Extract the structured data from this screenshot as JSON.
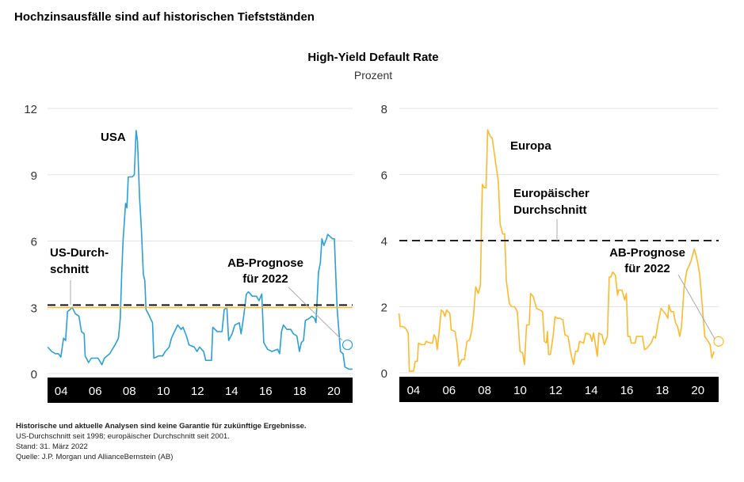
{
  "title": "Hochzinsausfälle sind auf historischen Tiefstständen",
  "subtitle": "High-Yield Default Rate",
  "unit": "Prozent",
  "footnotes": {
    "disclaimer": "Historische und aktuelle Analysen sind keine Garantie für zukünftige Ergebnisse.",
    "note": "US-Durchschnitt seit 1998; europäischer Durchschnitt seit 2001.",
    "date": "Stand: 31. März 2022",
    "source": "Quelle: J.P. Morgan und AllianceBernstein (AB)"
  },
  "chart_data": [
    {
      "type": "line",
      "title": "USA",
      "series_color": "#2a9fd8",
      "ylabel": "Prozent",
      "xlim": [
        2003.2,
        2021.1
      ],
      "ylim": [
        0,
        12
      ],
      "yticks": [
        "0",
        "3",
        "6",
        "9",
        "12"
      ],
      "ytick_values": [
        0,
        3,
        6,
        9,
        12
      ],
      "xticks": [
        "04",
        "06",
        "08",
        "10",
        "12",
        "14",
        "16",
        "18",
        "20"
      ],
      "xtick_values": [
        2004,
        2006,
        2008,
        2010,
        2012,
        2014,
        2016,
        2018,
        2020
      ],
      "average": {
        "value": 3.1,
        "label1": "US-Durch-",
        "label2": "schnitt"
      },
      "forecast": {
        "x": 2020.8,
        "value": 1.3,
        "label1": "AB-Prognose",
        "label2": "für 2022"
      },
      "points": [
        [
          2003.21,
          1.2
        ],
        [
          2003.44,
          1.0
        ],
        [
          2003.67,
          0.9
        ],
        [
          2003.83,
          0.9
        ],
        [
          2003.98,
          0.75
        ],
        [
          2004.14,
          1.6
        ],
        [
          2004.26,
          1.5
        ],
        [
          2004.37,
          2.8
        ],
        [
          2004.53,
          2.9
        ],
        [
          2004.64,
          3.0
        ],
        [
          2004.84,
          2.7
        ],
        [
          2005.04,
          2.6
        ],
        [
          2005.19,
          1.9
        ],
        [
          2005.35,
          1.8
        ],
        [
          2005.41,
          0.8
        ],
        [
          2005.61,
          0.5
        ],
        [
          2005.77,
          0.7
        ],
        [
          2006.16,
          0.7
        ],
        [
          2006.39,
          0.4
        ],
        [
          2006.54,
          0.7
        ],
        [
          2006.85,
          0.9
        ],
        [
          2007.16,
          1.3
        ],
        [
          2007.36,
          1.6
        ],
        [
          2007.47,
          2.5
        ],
        [
          2007.55,
          4.5
        ],
        [
          2007.63,
          6.0
        ],
        [
          2007.78,
          7.7
        ],
        [
          2007.86,
          7.5
        ],
        [
          2007.94,
          8.9
        ],
        [
          2008.17,
          8.9
        ],
        [
          2008.29,
          9.0
        ],
        [
          2008.4,
          11.0
        ],
        [
          2008.48,
          10.5
        ],
        [
          2008.6,
          8.0
        ],
        [
          2008.71,
          6.5
        ],
        [
          2008.82,
          4.5
        ],
        [
          2008.91,
          4.2
        ],
        [
          2008.98,
          2.9
        ],
        [
          2009.18,
          2.6
        ],
        [
          2009.36,
          2.3
        ],
        [
          2009.44,
          0.7
        ],
        [
          2009.72,
          0.8
        ],
        [
          2009.95,
          0.8
        ],
        [
          2010.11,
          1.0
        ],
        [
          2010.34,
          1.2
        ],
        [
          2010.47,
          1.6
        ],
        [
          2010.65,
          1.9
        ],
        [
          2010.84,
          2.2
        ],
        [
          2011.04,
          2.0
        ],
        [
          2011.15,
          2.1
        ],
        [
          2011.35,
          1.7
        ],
        [
          2011.5,
          1.3
        ],
        [
          2011.81,
          1.2
        ],
        [
          2011.97,
          1.0
        ],
        [
          2012.12,
          1.2
        ],
        [
          2012.36,
          1.0
        ],
        [
          2012.48,
          0.6
        ],
        [
          2012.82,
          0.6
        ],
        [
          2012.9,
          2.1
        ],
        [
          2013.16,
          1.9
        ],
        [
          2013.44,
          1.9
        ],
        [
          2013.57,
          2.9
        ],
        [
          2013.72,
          3.0
        ],
        [
          2013.83,
          1.5
        ],
        [
          2014.03,
          1.8
        ],
        [
          2014.19,
          2.2
        ],
        [
          2014.45,
          2.3
        ],
        [
          2014.56,
          1.8
        ],
        [
          2014.71,
          2.6
        ],
        [
          2014.87,
          3.6
        ],
        [
          2014.99,
          3.7
        ],
        [
          2015.22,
          3.5
        ],
        [
          2015.46,
          3.5
        ],
        [
          2015.61,
          3.3
        ],
        [
          2015.77,
          3.6
        ],
        [
          2015.89,
          1.4
        ],
        [
          2016.11,
          1.1
        ],
        [
          2016.36,
          1.0
        ],
        [
          2016.7,
          1.1
        ],
        [
          2016.82,
          0.9
        ],
        [
          2016.93,
          1.9
        ],
        [
          2017.04,
          2.2
        ],
        [
          2017.24,
          2.0
        ],
        [
          2017.47,
          2.0
        ],
        [
          2017.63,
          1.8
        ],
        [
          2017.83,
          1.7
        ],
        [
          2017.98,
          1.0
        ],
        [
          2018.09,
          1.4
        ],
        [
          2018.22,
          1.5
        ],
        [
          2018.33,
          2.4
        ],
        [
          2018.56,
          2.5
        ],
        [
          2018.71,
          2.6
        ],
        [
          2018.87,
          2.5
        ],
        [
          2018.95,
          2.3
        ],
        [
          2019.1,
          4.6
        ],
        [
          2019.21,
          5.0
        ],
        [
          2019.3,
          6.1
        ],
        [
          2019.41,
          5.8
        ],
        [
          2019.57,
          6.1
        ],
        [
          2019.64,
          6.3
        ],
        [
          2019.92,
          6.1
        ],
        [
          2020.03,
          6.1
        ],
        [
          2020.19,
          3.0
        ],
        [
          2020.39,
          1.0
        ],
        [
          2020.54,
          0.9
        ],
        [
          2020.65,
          0.3
        ],
        [
          2020.88,
          0.2
        ],
        [
          2021.09,
          0.2
        ]
      ]
    },
    {
      "type": "line",
      "title": "Europa",
      "series_color": "#fdb92c",
      "ylabel": "Prozent",
      "xlim": [
        2003.2,
        2021.17
      ],
      "ylim": [
        0,
        8
      ],
      "yticks": [
        "0",
        "2",
        "4",
        "6",
        "8"
      ],
      "ytick_values": [
        0,
        2,
        4,
        6,
        8
      ],
      "xticks": [
        "04",
        "06",
        "08",
        "10",
        "12",
        "14",
        "16",
        "18",
        "20"
      ],
      "xtick_values": [
        2004,
        2006,
        2008,
        2010,
        2012,
        2014,
        2016,
        2018,
        2020
      ],
      "average": {
        "value": 4.0,
        "label1": "Europäischer",
        "label2": "Durchschnitt"
      },
      "forecast": {
        "x": 2021.17,
        "value": 0.95,
        "label1": "AB-Prognose",
        "label2": "für 2022"
      },
      "points": [
        [
          2003.18,
          1.8
        ],
        [
          2003.25,
          1.4
        ],
        [
          2003.4,
          1.4
        ],
        [
          2003.55,
          1.35
        ],
        [
          2003.7,
          1.2
        ],
        [
          2003.76,
          0.05
        ],
        [
          2004.0,
          0.05
        ],
        [
          2004.1,
          0.35
        ],
        [
          2004.21,
          0.35
        ],
        [
          2004.28,
          0.9
        ],
        [
          2004.45,
          0.85
        ],
        [
          2004.63,
          0.85
        ],
        [
          2004.7,
          0.95
        ],
        [
          2004.92,
          0.9
        ],
        [
          2005.07,
          0.9
        ],
        [
          2005.15,
          1.15
        ],
        [
          2005.25,
          1.05
        ],
        [
          2005.33,
          0.7
        ],
        [
          2005.45,
          1.3
        ],
        [
          2005.56,
          1.9
        ],
        [
          2005.67,
          1.85
        ],
        [
          2005.77,
          1.7
        ],
        [
          2005.86,
          1.9
        ],
        [
          2006.04,
          1.8
        ],
        [
          2006.12,
          1.3
        ],
        [
          2006.34,
          1.25
        ],
        [
          2006.44,
          0.9
        ],
        [
          2006.56,
          0.2
        ],
        [
          2006.71,
          0.4
        ],
        [
          2006.86,
          0.4
        ],
        [
          2007.01,
          0.95
        ],
        [
          2007.16,
          1.0
        ],
        [
          2007.28,
          1.3
        ],
        [
          2007.38,
          1.75
        ],
        [
          2007.5,
          2.6
        ],
        [
          2007.64,
          2.4
        ],
        [
          2007.76,
          2.65
        ],
        [
          2007.87,
          5.7
        ],
        [
          2007.98,
          5.6
        ],
        [
          2008.08,
          5.6
        ],
        [
          2008.17,
          7.35
        ],
        [
          2008.32,
          7.15
        ],
        [
          2008.43,
          7.1
        ],
        [
          2008.58,
          6.5
        ],
        [
          2008.77,
          5.8
        ],
        [
          2008.87,
          4.5
        ],
        [
          2009.02,
          4.2
        ],
        [
          2009.13,
          4.2
        ],
        [
          2009.22,
          2.8
        ],
        [
          2009.39,
          2.1
        ],
        [
          2009.51,
          2.0
        ],
        [
          2009.69,
          2.0
        ],
        [
          2009.84,
          1.85
        ],
        [
          2009.99,
          0.65
        ],
        [
          2010.14,
          0.6
        ],
        [
          2010.24,
          0.25
        ],
        [
          2010.36,
          1.45
        ],
        [
          2010.51,
          1.45
        ],
        [
          2010.59,
          2.4
        ],
        [
          2010.74,
          2.3
        ],
        [
          2010.92,
          1.95
        ],
        [
          2011.11,
          1.9
        ],
        [
          2011.26,
          1.85
        ],
        [
          2011.36,
          0.95
        ],
        [
          2011.48,
          0.9
        ],
        [
          2011.53,
          1.25
        ],
        [
          2011.6,
          0.55
        ],
        [
          2011.7,
          0.55
        ],
        [
          2011.85,
          1.1
        ],
        [
          2011.96,
          1.7
        ],
        [
          2012.08,
          1.65
        ],
        [
          2012.23,
          1.65
        ],
        [
          2012.41,
          1.6
        ],
        [
          2012.52,
          1.15
        ],
        [
          2012.7,
          1.1
        ],
        [
          2012.85,
          0.6
        ],
        [
          2013.0,
          0.25
        ],
        [
          2013.12,
          0.65
        ],
        [
          2013.24,
          0.65
        ],
        [
          2013.34,
          0.95
        ],
        [
          2013.57,
          0.9
        ],
        [
          2013.69,
          1.2
        ],
        [
          2013.94,
          1.15
        ],
        [
          2014.04,
          0.95
        ],
        [
          2014.13,
          1.2
        ],
        [
          2014.21,
          0.95
        ],
        [
          2014.34,
          0.5
        ],
        [
          2014.43,
          1.2
        ],
        [
          2014.61,
          1.15
        ],
        [
          2014.73,
          0.85
        ],
        [
          2014.91,
          1.1
        ],
        [
          2015.01,
          2.9
        ],
        [
          2015.1,
          2.9
        ],
        [
          2015.21,
          3.05
        ],
        [
          2015.36,
          2.95
        ],
        [
          2015.48,
          2.35
        ],
        [
          2015.54,
          2.5
        ],
        [
          2015.73,
          2.5
        ],
        [
          2015.88,
          2.2
        ],
        [
          2015.98,
          2.4
        ],
        [
          2016.06,
          1.1
        ],
        [
          2016.18,
          1.1
        ],
        [
          2016.25,
          0.9
        ],
        [
          2016.47,
          0.9
        ],
        [
          2016.55,
          1.1
        ],
        [
          2016.88,
          1.1
        ],
        [
          2017.0,
          0.7
        ],
        [
          2017.14,
          0.75
        ],
        [
          2017.37,
          0.9
        ],
        [
          2017.52,
          1.1
        ],
        [
          2017.62,
          1.05
        ],
        [
          2017.74,
          1.45
        ],
        [
          2017.93,
          1.95
        ],
        [
          2018.22,
          1.75
        ],
        [
          2018.31,
          1.65
        ],
        [
          2018.37,
          2.05
        ],
        [
          2018.49,
          1.85
        ],
        [
          2018.63,
          1.85
        ],
        [
          2018.75,
          1.5
        ],
        [
          2018.86,
          1.4
        ],
        [
          2018.98,
          1.1
        ],
        [
          2019.08,
          1.4
        ],
        [
          2019.23,
          2.6
        ],
        [
          2019.38,
          3.1
        ],
        [
          2019.6,
          3.35
        ],
        [
          2019.8,
          3.75
        ],
        [
          2019.95,
          3.45
        ],
        [
          2020.1,
          3.0
        ],
        [
          2020.24,
          2.1
        ],
        [
          2020.39,
          1.1
        ],
        [
          2020.58,
          0.95
        ],
        [
          2020.69,
          0.85
        ],
        [
          2020.79,
          0.45
        ],
        [
          2020.91,
          0.65
        ]
      ]
    }
  ]
}
